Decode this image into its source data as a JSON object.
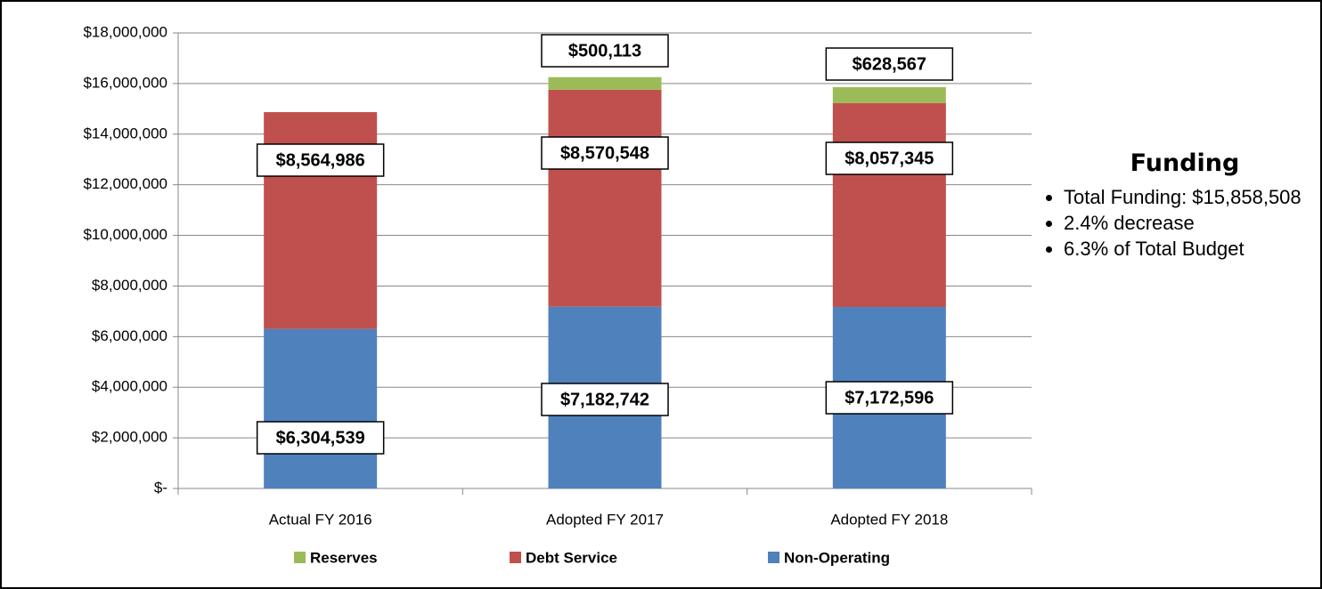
{
  "chart_data": {
    "type": "stacked-bar",
    "categories": [
      "Actual FY 2016",
      "Adopted FY 2017",
      "Adopted FY 2018"
    ],
    "series": [
      {
        "name": "Non-Operating",
        "color": "#4f81bd",
        "values": [
          6304539,
          7182742,
          7172596
        ],
        "value_labels": [
          "$6,304,539",
          "$7,182,742",
          "$7,172,596"
        ]
      },
      {
        "name": "Debt Service",
        "color": "#c0504d",
        "values": [
          8564986,
          8570548,
          8057345
        ],
        "value_labels": [
          "$8,564,986",
          "$8,570,548",
          "$8,057,345"
        ]
      },
      {
        "name": "Reserves",
        "color": "#9bbb59",
        "values": [
          null,
          500113,
          628567
        ],
        "value_labels": [
          null,
          "$500,113",
          "$628,567"
        ]
      }
    ],
    "ylim": [
      0,
      18000000
    ],
    "yticks": [
      {
        "value": 0,
        "label": "$-"
      },
      {
        "value": 2000000,
        "label": "$2,000,000"
      },
      {
        "value": 4000000,
        "label": "$4,000,000"
      },
      {
        "value": 6000000,
        "label": "$6,000,000"
      },
      {
        "value": 8000000,
        "label": "$8,000,000"
      },
      {
        "value": 10000000,
        "label": "$10,000,000"
      },
      {
        "value": 12000000,
        "label": "$12,000,000"
      },
      {
        "value": 14000000,
        "label": "$14,000,000"
      },
      {
        "value": 16000000,
        "label": "$16,000,000"
      },
      {
        "value": 18000000,
        "label": "$18,000,000"
      }
    ],
    "grid": true,
    "legend": "bottom",
    "side_panel": {
      "title": "Funding",
      "bullets": [
        "Total Funding: $15,858,508",
        "2.4% decrease",
        "6.3% of Total Budget"
      ]
    }
  }
}
